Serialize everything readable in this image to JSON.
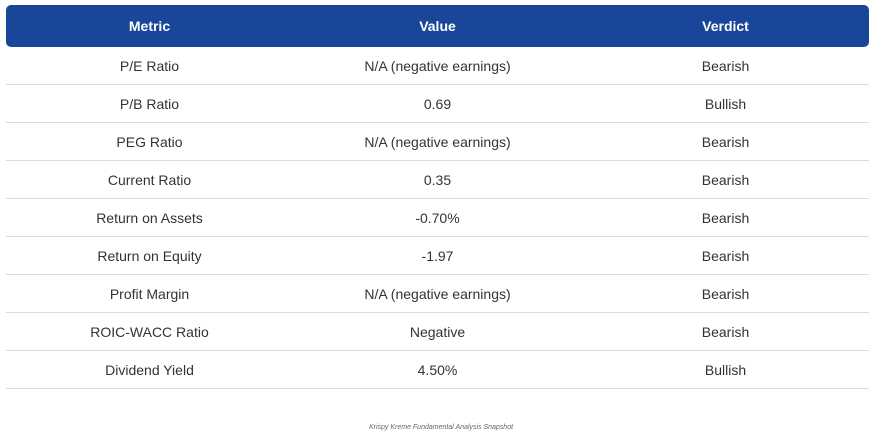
{
  "table": {
    "headers": [
      "Metric",
      "Value",
      "Verdict"
    ],
    "rows": [
      [
        "P/E Ratio",
        "N/A (negative earnings)",
        "Bearish"
      ],
      [
        "P/B Ratio",
        "0.69",
        "Bullish"
      ],
      [
        "PEG Ratio",
        "N/A (negative earnings)",
        "Bearish"
      ],
      [
        "Current Ratio",
        "0.35",
        "Bearish"
      ],
      [
        "Return on Assets",
        "-0.70%",
        "Bearish"
      ],
      [
        "Return on Equity",
        "-1.97",
        "Bearish"
      ],
      [
        "Profit Margin",
        "N/A (negative earnings)",
        "Bearish"
      ],
      [
        "ROIC-WACC Ratio",
        "Negative",
        "Bearish"
      ],
      [
        "Dividend Yield",
        "4.50%",
        "Bullish"
      ]
    ]
  },
  "caption": "Krispy Kreme Fundamental Analysis Snapshot",
  "colors": {
    "header_bg": "#1a4699",
    "header_text": "#ffffff",
    "row_border": "#d6dbe6"
  }
}
